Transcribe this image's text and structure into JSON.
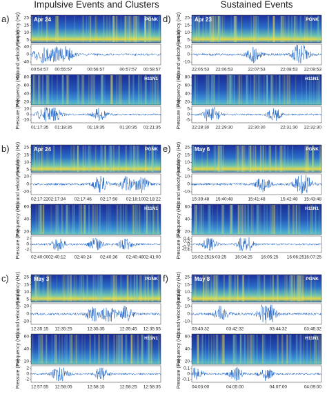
{
  "header": {
    "left": "Impulsive Events and Clusters",
    "right": "Sustained Events"
  },
  "panels": [
    {
      "letter": "a)",
      "date": "Apr 24",
      "seismic": {
        "station": "PGNK",
        "freq_label": "Frequency (Hz)",
        "freq_ticks": [
          "25",
          "15",
          "10",
          "5"
        ],
        "amp_label": "Ground velocity (um/s)",
        "amp_ticks": [
          "40",
          "0",
          "-40"
        ],
        "times": [
          "00:54:57",
          "00:55:57",
          "00:56:57",
          "00:57:57",
          "00:58:57"
        ]
      },
      "hydro": {
        "station": "H11N1",
        "freq_label": "Frequency (Hz)",
        "freq_ticks": [
          "80",
          "60",
          "40",
          "20"
        ],
        "amp_label": "Pressure (Pa)",
        "amp_ticks": [
          "10",
          "0",
          "-10"
        ],
        "times": [
          "01:17:35",
          "01:18:35",
          "01:19:35",
          "01:20:35",
          "01:21:35"
        ]
      }
    },
    {
      "letter": "d)",
      "date": "Apr 23",
      "seismic": {
        "station": "PGNK",
        "freq_label": "Frequency (Hz)",
        "freq_ticks": [
          "25",
          "15",
          "10",
          "5"
        ],
        "amp_label": "Ground velocity (um/s)",
        "amp_ticks": [
          "10",
          "0",
          "-10"
        ],
        "times": [
          "22:05:53",
          "22:06:53",
          "22:07:53",
          "22:08:53",
          "22:09:53"
        ]
      },
      "hydro": {
        "station": "H11N1",
        "freq_label": "Frequency (Hz)",
        "freq_ticks": [
          "80",
          "60",
          "40",
          "20"
        ],
        "amp_label": "Pressure (Pa)",
        "amp_ticks": [
          "5",
          "0",
          "-5"
        ],
        "times": [
          "22:28:30",
          "22:29:30",
          "22:30:30",
          "22:31:30",
          "22:32:30"
        ]
      }
    },
    {
      "letter": "b)",
      "date": "Apr 24",
      "seismic": {
        "station": "PGNK",
        "freq_label": "Frequency (Hz)",
        "freq_ticks": [
          "25",
          "15",
          "10",
          "5"
        ],
        "amp_label": "Ground velocity (um/s)",
        "amp_ticks": [
          "20",
          "0",
          "-20"
        ],
        "times": [
          "02:17:22",
          "02:17:34",
          "02:17:46",
          "02:17:58",
          "02:18:10",
          "02:18:22"
        ]
      },
      "hydro": {
        "station": "H11N1",
        "freq_label": "Frequency (Hz)",
        "freq_ticks": [
          "60",
          "40",
          "20"
        ],
        "amp_label": "Pressure (Pa)",
        "amp_ticks": [
          "2",
          "0",
          "-2"
        ],
        "times": [
          "02:40:00",
          "02:40:12",
          "02:40:24",
          "02:40:36",
          "02:40:48",
          "02:41:00"
        ]
      }
    },
    {
      "letter": "e)",
      "date": "May 6",
      "seismic": {
        "station": "PGNK",
        "freq_label": "Frequency (Hz)",
        "freq_ticks": [
          "25",
          "15",
          "10",
          "5"
        ],
        "amp_label": "Ground velocity (um/s)",
        "amp_ticks": [
          "10",
          "0",
          "-10"
        ],
        "times": [
          "15:39:48",
          "15:40:48",
          "15:41:48",
          "15:42:48",
          "15:43:48"
        ]
      },
      "hydro": {
        "station": "H11N1",
        "freq_label": "Frequency (Hz)",
        "freq_ticks": [
          "60",
          "40",
          "20"
        ],
        "amp_label": "Pressure (Pa)",
        "amp_ticks": [
          "0.4",
          "0.2",
          "0",
          "-0.2",
          "-0.4"
        ],
        "times": [
          "16:02:25",
          "16:03:25",
          "16:04:25",
          "16:05:25",
          "16:06:25",
          "16:07:25"
        ]
      }
    },
    {
      "letter": "c)",
      "date": "May 3",
      "seismic": {
        "station": "PGNK",
        "freq_label": "Frequency (Hz)",
        "freq_ticks": [
          "25",
          "15",
          "10",
          "5"
        ],
        "amp_label": "Ground velocity (um/s)",
        "amp_ticks": [
          "20",
          "0",
          "-20"
        ],
        "times": [
          "12:35:15",
          "12:35:25",
          "12:35:35",
          "12:35:45",
          "12:35:55"
        ]
      },
      "hydro": {
        "station": "H11N1",
        "freq_label": "Frequency (Hz)",
        "freq_ticks": [
          "60",
          "40",
          "20"
        ],
        "amp_label": "Pressure (Pa)",
        "amp_ticks": [
          "2",
          "0",
          "-2"
        ],
        "times": [
          "12:57:55",
          "12:58:05",
          "12:58:15",
          "12:58:25",
          "12:58:35"
        ]
      }
    },
    {
      "letter": "f)",
      "date": "May 8",
      "seismic": {
        "station": "PGNK",
        "freq_label": "Frequency (Hz)",
        "freq_ticks": [
          "25",
          "15",
          "10",
          "5"
        ],
        "amp_label": "Ground velocity (um/s)",
        "amp_ticks": [
          "10",
          "0",
          "-10"
        ],
        "times": [
          "03:40:32",
          "03:42:32",
          "03:44:32",
          "03:46:32"
        ]
      },
      "hydro": {
        "station": "H11N1",
        "freq_label": "Frequency (Hz)",
        "freq_ticks": [
          "60",
          "40",
          "20"
        ],
        "amp_label": "Pressure (Pa)",
        "amp_ticks": [
          "0.1",
          "0",
          "-0.1"
        ],
        "times": [
          "04:03:00",
          "04:05:00",
          "04:07:00",
          "04:09:00"
        ]
      }
    }
  ]
}
